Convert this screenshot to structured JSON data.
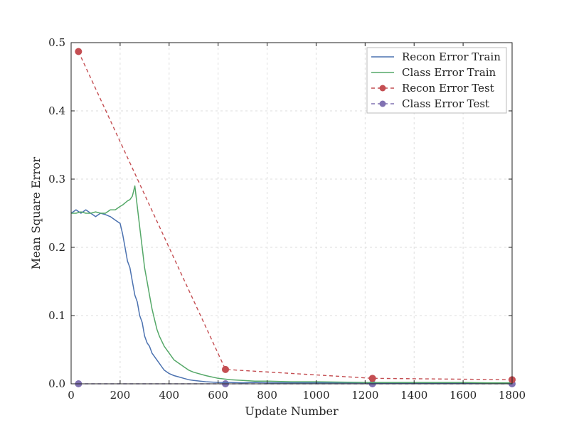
{
  "chart_data": {
    "type": "line",
    "title": "",
    "xlabel": "Update Number",
    "ylabel": "Mean Square Error",
    "xlim": [
      0,
      1800
    ],
    "ylim": [
      0,
      0.5
    ],
    "xticks": [
      0,
      200,
      400,
      600,
      800,
      1000,
      1200,
      1400,
      1600,
      1800
    ],
    "xtick_labels": [
      "0",
      "200",
      "400",
      "600",
      "800",
      "1000",
      "1200",
      "1400",
      "1600",
      "1800"
    ],
    "yticks": [
      0.0,
      0.1,
      0.2,
      0.3,
      0.4,
      0.5
    ],
    "ytick_labels": [
      "0.0",
      "0.1",
      "0.2",
      "0.3",
      "0.4",
      "0.5"
    ],
    "grid": true,
    "legend_position": "top-right",
    "series": [
      {
        "name": "Recon Error Train",
        "style": "solid",
        "color": "#4c72b0",
        "x": [
          0,
          20,
          40,
          60,
          80,
          100,
          120,
          140,
          160,
          180,
          200,
          210,
          220,
          230,
          240,
          250,
          260,
          270,
          280,
          290,
          300,
          310,
          320,
          330,
          340,
          350,
          360,
          370,
          380,
          400,
          420,
          440,
          460,
          480,
          500,
          550,
          600,
          650,
          700,
          750,
          800,
          900,
          1000,
          1100,
          1200,
          1300,
          1400,
          1500,
          1600,
          1700,
          1800
        ],
        "y": [
          0.25,
          0.255,
          0.25,
          0.255,
          0.25,
          0.245,
          0.25,
          0.248,
          0.245,
          0.24,
          0.235,
          0.22,
          0.2,
          0.18,
          0.17,
          0.15,
          0.13,
          0.12,
          0.1,
          0.09,
          0.07,
          0.06,
          0.055,
          0.045,
          0.04,
          0.035,
          0.03,
          0.025,
          0.02,
          0.015,
          0.012,
          0.01,
          0.008,
          0.006,
          0.005,
          0.003,
          0.002,
          0.002,
          0.0015,
          0.002,
          0.0015,
          0.0015,
          0.0015,
          0.0015,
          0.0015,
          0.001,
          0.0015,
          0.001,
          0.001,
          0.001,
          0.001
        ]
      },
      {
        "name": "Class Error Train",
        "style": "solid",
        "color": "#55a868",
        "x": [
          0,
          20,
          40,
          60,
          80,
          100,
          120,
          140,
          160,
          180,
          200,
          210,
          220,
          230,
          240,
          250,
          260,
          270,
          280,
          290,
          300,
          310,
          320,
          330,
          340,
          350,
          360,
          380,
          400,
          420,
          440,
          460,
          480,
          500,
          550,
          600,
          650,
          700,
          750,
          800,
          900,
          1000,
          1100,
          1200,
          1300,
          1400,
          1500,
          1600,
          1700,
          1800
        ],
        "y": [
          0.25,
          0.25,
          0.252,
          0.25,
          0.25,
          0.252,
          0.25,
          0.25,
          0.255,
          0.255,
          0.26,
          0.262,
          0.265,
          0.268,
          0.27,
          0.275,
          0.29,
          0.26,
          0.23,
          0.2,
          0.17,
          0.15,
          0.13,
          0.11,
          0.095,
          0.08,
          0.07,
          0.055,
          0.045,
          0.035,
          0.03,
          0.025,
          0.02,
          0.017,
          0.012,
          0.008,
          0.006,
          0.005,
          0.004,
          0.004,
          0.003,
          0.003,
          0.0025,
          0.002,
          0.002,
          0.002,
          0.002,
          0.002,
          0.0015,
          0.0015
        ]
      },
      {
        "name": "Recon Error Test",
        "style": "dashed",
        "marker": "circle",
        "color": "#c44e52",
        "x": [
          30,
          630,
          1230,
          1800
        ],
        "y": [
          0.487,
          0.021,
          0.008,
          0.006
        ]
      },
      {
        "name": "Class Error Test",
        "style": "dashed",
        "marker": "circle",
        "color": "#8172b2",
        "x": [
          30,
          630,
          1230,
          1800
        ],
        "y": [
          0.0,
          0.0,
          0.0,
          0.0
        ]
      }
    ]
  }
}
